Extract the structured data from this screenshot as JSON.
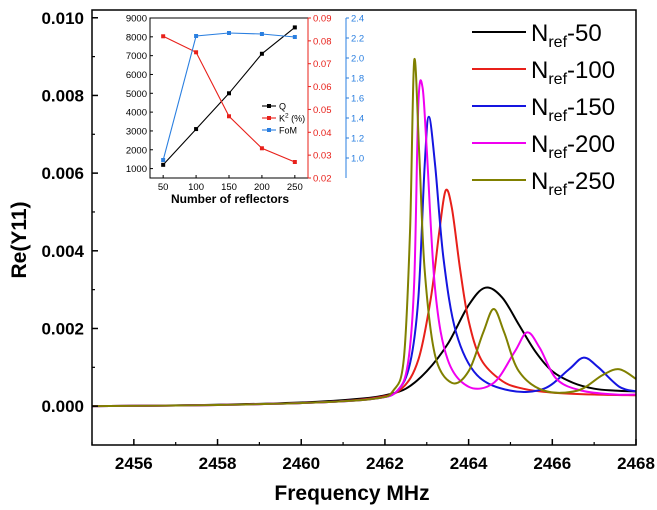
{
  "chart_data": [
    {
      "type": "line",
      "title": "",
      "xlabel": "Frequency  MHz",
      "ylabel": "Re(Y11)",
      "xlim": [
        2455,
        2468
      ],
      "ylim": [
        -0.001,
        0.0102
      ],
      "xticks": [
        2456,
        2458,
        2460,
        2462,
        2464,
        2466,
        2468
      ],
      "xtick_labels": [
        "2456",
        "2458",
        "2460",
        "2462",
        "2464",
        "2466",
        "2468"
      ],
      "yticks": [
        0.0,
        0.002,
        0.004,
        0.006,
        0.008,
        0.01
      ],
      "ytick_labels": [
        "0.000",
        "0.002",
        "0.004",
        "0.006",
        "0.008",
        "0.010"
      ],
      "grid": false,
      "legend_position": "top-right",
      "series": [
        {
          "legend_main": "N",
          "legend_sub": "ref",
          "legend_suffix": "-50",
          "color": "#000000",
          "x": [
            2455,
            2457,
            2459,
            2460.5,
            2461.5,
            2462,
            2462.5,
            2463,
            2463.5,
            2464,
            2464.4,
            2464.8,
            2465.2,
            2465.6,
            2466,
            2466.5,
            2467,
            2467.5,
            2468
          ],
          "y": [
            0.0,
            2e-05,
            6e-05,
            0.00012,
            0.0002,
            0.00028,
            0.00045,
            0.0009,
            0.0016,
            0.0026,
            0.00305,
            0.0028,
            0.0021,
            0.0014,
            0.0009,
            0.0006,
            0.00045,
            0.0004,
            0.00038
          ]
        },
        {
          "legend_main": "N",
          "legend_sub": "ref",
          "legend_suffix": "-100",
          "color": "#e8201a",
          "x": [
            2455,
            2458,
            2460.5,
            2461.8,
            2462.4,
            2462.8,
            2463.1,
            2463.3,
            2463.45,
            2463.6,
            2463.8,
            2464,
            2464.3,
            2464.8,
            2465.3,
            2466,
            2467,
            2468
          ],
          "y": [
            0.0,
            3e-05,
            0.0001,
            0.00022,
            0.00045,
            0.0012,
            0.0028,
            0.0045,
            0.00555,
            0.0051,
            0.0035,
            0.0022,
            0.0012,
            0.00065,
            0.00045,
            0.00035,
            0.0003,
            0.00028
          ]
        },
        {
          "legend_main": "N",
          "legend_sub": "ref",
          "legend_suffix": "-150",
          "color": "#1515e0",
          "x": [
            2455,
            2458,
            2460.5,
            2461.8,
            2462.3,
            2462.6,
            2462.8,
            2462.95,
            2463.05,
            2463.2,
            2463.4,
            2463.7,
            2464.2,
            2465,
            2465.8,
            2466.4,
            2466.75,
            2467.1,
            2467.6,
            2468
          ],
          "y": [
            0.0,
            3e-05,
            0.0001,
            0.0002,
            0.0004,
            0.0011,
            0.0028,
            0.0062,
            0.00745,
            0.0062,
            0.0038,
            0.0019,
            0.0008,
            0.0004,
            0.00045,
            0.00095,
            0.00125,
            0.001,
            0.0005,
            0.00038
          ]
        },
        {
          "legend_main": "N",
          "legend_sub": "ref",
          "legend_suffix": "-200",
          "color": "#f000f0",
          "x": [
            2455,
            2458,
            2460.5,
            2461.8,
            2462.3,
            2462.55,
            2462.7,
            2462.8,
            2462.9,
            2463,
            2463.2,
            2463.5,
            2464,
            2464.6,
            2465.1,
            2465.4,
            2465.7,
            2466.1,
            2466.7,
            2467.5,
            2468
          ],
          "y": [
            0.0,
            3e-05,
            0.0001,
            0.0002,
            0.0004,
            0.0011,
            0.0032,
            0.0078,
            0.0082,
            0.0066,
            0.003,
            0.0012,
            0.0005,
            0.0006,
            0.0014,
            0.0019,
            0.0015,
            0.0007,
            0.0004,
            0.0003,
            0.0003
          ]
        },
        {
          "legend_main": "N",
          "legend_sub": "ref",
          "legend_suffix": "-250",
          "color": "#808000",
          "x": [
            2455,
            2458,
            2460.5,
            2461.8,
            2462.2,
            2462.45,
            2462.6,
            2462.7,
            2462.82,
            2462.95,
            2463.2,
            2463.6,
            2464,
            2464.35,
            2464.6,
            2464.85,
            2465.2,
            2465.8,
            2466.6,
            2467.2,
            2467.6,
            2468
          ],
          "y": [
            0.0,
            3e-05,
            0.0001,
            0.0002,
            0.0004,
            0.0012,
            0.0045,
            0.0089,
            0.0065,
            0.0035,
            0.0013,
            0.0006,
            0.0009,
            0.0019,
            0.0025,
            0.0019,
            0.0009,
            0.0004,
            0.0004,
            0.0008,
            0.00095,
            0.0007
          ]
        }
      ]
    },
    {
      "type": "line",
      "title": "",
      "xlabel": "Number of reflectors",
      "categories": [
        "50",
        "100",
        "150",
        "200",
        "250"
      ],
      "x": [
        50,
        100,
        150,
        200,
        250
      ],
      "xlim": [
        30,
        270
      ],
      "legend_position": "center-right",
      "axes": {
        "left": {
          "ylim": [
            500,
            9000
          ],
          "ticks": [
            "1000",
            "2000",
            "3000",
            "4000",
            "5000",
            "6000",
            "7000",
            "8000",
            "9000"
          ],
          "color": "#000000"
        },
        "right1": {
          "ylim": [
            0.02,
            0.09
          ],
          "ticks": [
            "0.02",
            "0.03",
            "0.04",
            "0.05",
            "0.06",
            "0.07",
            "0.08",
            "0.09"
          ],
          "color": "#e8201a"
        },
        "right2": {
          "ylim": [
            0.8,
            2.4
          ],
          "ticks": [
            "1.0",
            "1.2",
            "1.4",
            "1.6",
            "1.8",
            "2.0",
            "2.2",
            "2.4"
          ],
          "color": "#2a7fe0"
        }
      },
      "series": [
        {
          "name": "Q",
          "axis": "left",
          "color": "#000000",
          "values": [
            1200,
            3100,
            5000,
            7100,
            8500
          ]
        },
        {
          "name": "K",
          "sup": "2",
          "name_suffix": " (%)",
          "axis": "right1",
          "color": "#e8201a",
          "values": [
            0.082,
            0.075,
            0.047,
            0.033,
            0.027
          ]
        },
        {
          "name": "FoM",
          "axis": "right2",
          "color": "#2a7fe0",
          "values": [
            0.98,
            2.22,
            2.25,
            2.24,
            2.21
          ]
        }
      ]
    }
  ]
}
